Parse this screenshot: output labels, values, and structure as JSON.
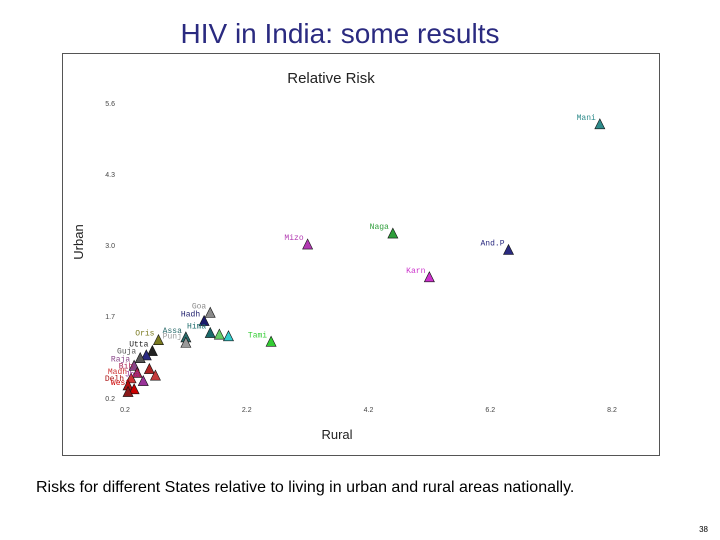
{
  "slide": {
    "title": "HIV in India: some results",
    "caption": "Risks for different States relative to living in urban and rural areas nationally.",
    "page_number": "38"
  },
  "chart_data": {
    "type": "scatter",
    "title": "Relative Risk",
    "xlabel": "Rural",
    "ylabel": "Urban",
    "xlim": [
      0.2,
      8.2
    ],
    "ylim": [
      0.2,
      5.6
    ],
    "x_ticks": [
      "0.2",
      "2.2",
      "4.2",
      "6.2",
      "8.2"
    ],
    "x_tick_values": [
      0.2,
      2.2,
      4.2,
      6.2,
      8.2
    ],
    "y_ticks": [
      "0.2",
      "1.7",
      "3.0",
      "4.3",
      "5.6"
    ],
    "y_tick_values": [
      0.2,
      1.7,
      3.0,
      4.3,
      5.6
    ],
    "grid": false,
    "marker": "triangle",
    "points": [
      {
        "label": "Mani",
        "x": 8.0,
        "y": 5.2,
        "color": "#2e8b8b"
      },
      {
        "label": "Naga",
        "x": 4.6,
        "y": 3.2,
        "color": "#2e9e3a"
      },
      {
        "label": "Mizo",
        "x": 3.2,
        "y": 3.0,
        "color": "#b23ab2"
      },
      {
        "label": "And.P",
        "x": 6.5,
        "y": 2.9,
        "color": "#2a2a80"
      },
      {
        "label": "Karn",
        "x": 5.2,
        "y": 2.4,
        "color": "#cc33cc"
      },
      {
        "label": "Goa",
        "x": 1.6,
        "y": 1.75,
        "color": "#8a8a8a"
      },
      {
        "label": "Hadh",
        "x": 1.5,
        "y": 1.6,
        "color": "#1a1a6a"
      },
      {
        "label": "Hima",
        "x": 1.6,
        "y": 1.38,
        "color": "#1a6a6a"
      },
      {
        "label": "Assa",
        "x": 1.2,
        "y": 1.3,
        "color": "#2a6a6a"
      },
      {
        "label": "",
        "x": 1.75,
        "y": 1.35,
        "color": "#66cc66"
      },
      {
        "label": "",
        "x": 1.9,
        "y": 1.32,
        "color": "#33cccc"
      },
      {
        "label": "Tami",
        "x": 2.6,
        "y": 1.22,
        "color": "#33cc33"
      },
      {
        "label": "Oris",
        "x": 0.75,
        "y": 1.25,
        "color": "#7a7a20"
      },
      {
        "label": "Punj",
        "x": 1.2,
        "y": 1.2,
        "color": "#9a9a9a"
      },
      {
        "label": "Utta",
        "x": 0.65,
        "y": 1.05,
        "color": "#222222"
      },
      {
        "label": "",
        "x": 0.55,
        "y": 0.97,
        "color": "#2a2a80"
      },
      {
        "label": "Guja",
        "x": 0.45,
        "y": 0.92,
        "color": "#555555"
      },
      {
        "label": "Raja",
        "x": 0.35,
        "y": 0.78,
        "color": "#884488"
      },
      {
        "label": "Bih",
        "x": 0.4,
        "y": 0.65,
        "color": "#aa2255"
      },
      {
        "label": "Madh",
        "x": 0.3,
        "y": 0.55,
        "color": "#cc3333"
      },
      {
        "label": "Jha",
        "x": 0.5,
        "y": 0.5,
        "color": "#993399"
      },
      {
        "label": "Delh",
        "x": 0.25,
        "y": 0.42,
        "color": "#aa1111"
      },
      {
        "label": "West",
        "x": 0.35,
        "y": 0.35,
        "color": "#cc0000"
      },
      {
        "label": "",
        "x": 0.6,
        "y": 0.72,
        "color": "#aa2222"
      },
      {
        "label": "",
        "x": 0.7,
        "y": 0.6,
        "color": "#c43a3a"
      },
      {
        "label": "",
        "x": 0.25,
        "y": 0.3,
        "color": "#8b1a1a"
      }
    ]
  }
}
